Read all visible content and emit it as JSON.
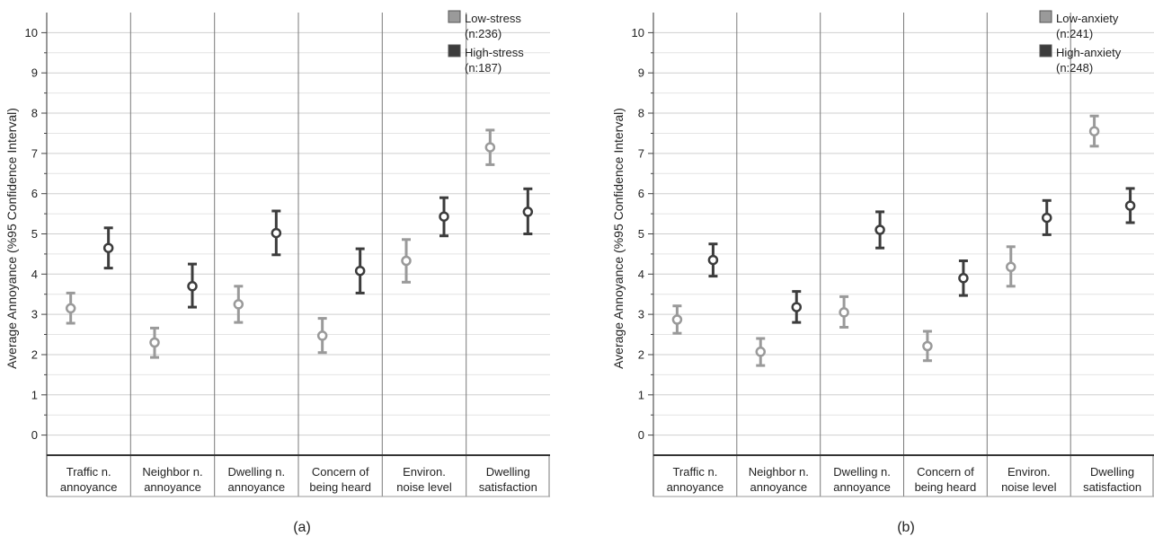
{
  "chart_data": [
    {
      "type": "errorbar",
      "panel_label": "(a)",
      "ylabel": "Average Annoyance (%95 Confidence Interval)",
      "ylim": [
        -0.5,
        10.5
      ],
      "yticks": [
        0,
        1,
        2,
        3,
        4,
        5,
        6,
        7,
        8,
        9,
        10
      ],
      "grid": true,
      "legend_position": "top-right",
      "categories": [
        [
          "Traffic n.",
          "annoyance"
        ],
        [
          "Neighbor n.",
          "annoyance"
        ],
        [
          "Dwelling n.",
          "annoyance"
        ],
        [
          "Concern of",
          "being heard"
        ],
        [
          "Environ.",
          "noise level"
        ],
        [
          "Dwelling",
          "satisfaction"
        ]
      ],
      "series": [
        {
          "name": [
            "Low-stress",
            "(n:236)"
          ],
          "color": "#9a9a9a",
          "mean": [
            3.15,
            2.3,
            3.25,
            2.47,
            4.33,
            7.15
          ],
          "lower": [
            2.78,
            1.93,
            2.8,
            2.05,
            3.8,
            6.72
          ],
          "upper": [
            3.53,
            2.66,
            3.7,
            2.9,
            4.86,
            7.58
          ]
        },
        {
          "name": [
            "High-stress",
            "(n:187)"
          ],
          "color": "#3c3c3c",
          "mean": [
            4.65,
            3.7,
            5.02,
            4.08,
            5.43,
            5.55
          ],
          "lower": [
            4.15,
            3.18,
            4.48,
            3.53,
            4.95,
            5.0
          ],
          "upper": [
            5.15,
            4.25,
            5.57,
            4.63,
            5.9,
            6.12
          ]
        }
      ]
    },
    {
      "type": "errorbar",
      "panel_label": "(b)",
      "ylabel": "Average Annoyance (%95 Confidence Interval)",
      "ylim": [
        -0.5,
        10.5
      ],
      "yticks": [
        0,
        1,
        2,
        3,
        4,
        5,
        6,
        7,
        8,
        9,
        10
      ],
      "grid": true,
      "legend_position": "top-right",
      "categories": [
        [
          "Traffic n.",
          "annoyance"
        ],
        [
          "Neighbor n.",
          "annoyance"
        ],
        [
          "Dwelling n.",
          "annoyance"
        ],
        [
          "Concern of",
          "being heard"
        ],
        [
          "Environ.",
          "noise level"
        ],
        [
          "Dwelling",
          "satisfaction"
        ]
      ],
      "series": [
        {
          "name": [
            "Low-anxiety",
            "(n:241)"
          ],
          "color": "#9a9a9a",
          "mean": [
            2.87,
            2.07,
            3.05,
            2.21,
            4.18,
            7.55
          ],
          "lower": [
            2.53,
            1.73,
            2.68,
            1.85,
            3.7,
            7.18
          ],
          "upper": [
            3.21,
            2.4,
            3.44,
            2.58,
            4.68,
            7.93
          ]
        },
        {
          "name": [
            "High-anxiety",
            "(n:248)"
          ],
          "color": "#3c3c3c",
          "mean": [
            4.35,
            3.18,
            5.1,
            3.9,
            5.4,
            5.7
          ],
          "lower": [
            3.95,
            2.8,
            4.65,
            3.47,
            4.98,
            5.28
          ],
          "upper": [
            4.75,
            3.57,
            5.55,
            4.33,
            5.83,
            6.13
          ]
        }
      ]
    }
  ]
}
